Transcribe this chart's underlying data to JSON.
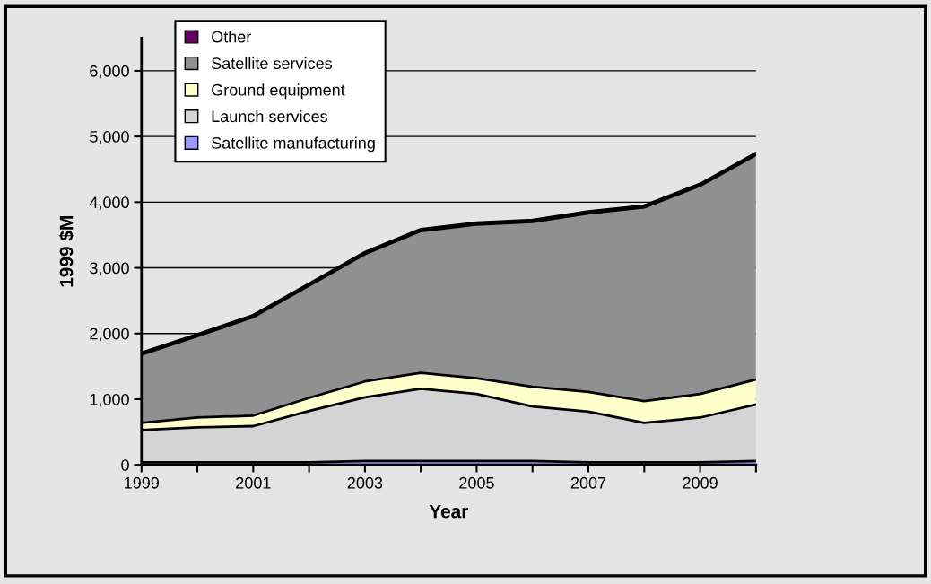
{
  "chart_data": {
    "type": "area",
    "stacked": true,
    "xlabel": "Year",
    "ylabel": "1999 $M",
    "x": [
      1999,
      2000,
      2001,
      2002,
      2003,
      2004,
      2005,
      2006,
      2007,
      2008,
      2009,
      2010
    ],
    "series": [
      {
        "name": "Satellite manufacturing",
        "color": "#9999ff",
        "values": [
          40,
          40,
          40,
          40,
          60,
          60,
          60,
          60,
          40,
          40,
          40,
          60
        ]
      },
      {
        "name": "Launch services",
        "color": "#d4d4d4",
        "values": [
          490,
          530,
          550,
          780,
          970,
          1100,
          1020,
          830,
          770,
          600,
          680,
          860
        ]
      },
      {
        "name": "Ground equipment",
        "color": "#ffffcc",
        "values": [
          110,
          150,
          160,
          200,
          240,
          240,
          240,
          300,
          300,
          330,
          360,
          380
        ]
      },
      {
        "name": "Satellite services",
        "color": "#909090",
        "values": [
          1040,
          1240,
          1500,
          1710,
          1940,
          2160,
          2340,
          2510,
          2720,
          2950,
          3170,
          3420
        ]
      },
      {
        "name": "Other",
        "color": "#660066",
        "values": [
          30,
          30,
          30,
          30,
          30,
          30,
          30,
          30,
          30,
          30,
          30,
          30
        ]
      }
    ],
    "xlim": [
      1999,
      2010
    ],
    "xticks": [
      1999,
      {
        "value": 2000,
        "label": null
      },
      2001,
      {
        "value": 2002,
        "label": null
      },
      2003,
      {
        "value": 2004,
        "label": null
      },
      2005,
      {
        "value": 2006,
        "label": null
      },
      2007,
      {
        "value": 2008,
        "label": null
      },
      2009,
      {
        "value": 2010,
        "label": null
      }
    ],
    "ylim": [
      0,
      6500
    ],
    "yticks": [
      0,
      {
        "value": 1000,
        "label": "1,000"
      },
      {
        "value": 2000,
        "label": "2,000"
      },
      {
        "value": 3000,
        "label": "3,000"
      },
      {
        "value": 4000,
        "label": "4,000"
      },
      {
        "value": 5000,
        "label": "5,000"
      },
      {
        "value": 6000,
        "label": "6,000"
      }
    ],
    "grid": "y",
    "legend": "top left"
  }
}
